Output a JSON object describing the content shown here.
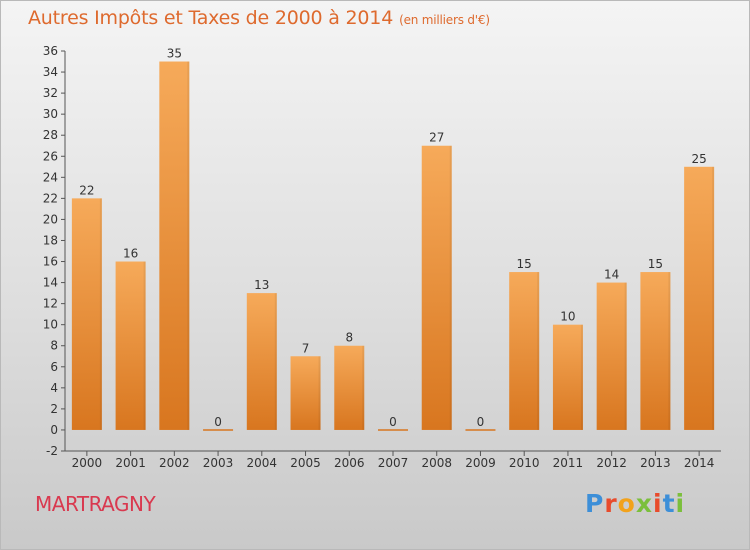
{
  "title": "Autres Impôts et Taxes de 2000 à 2014",
  "unit_label": "(en milliers d'€)",
  "city": "MARTRAGNY",
  "brand": "Proxiti",
  "brand_colors": [
    "#3d8fd8",
    "#e84b2c",
    "#f2a21b",
    "#7bbf3c",
    "#e84b2c",
    "#3d8fd8",
    "#7bbf3c"
  ],
  "colors": {
    "bar_top": "#f6aa5a",
    "bar_bottom": "#d8761f",
    "title": "#de6a2e",
    "city": "#d9394f"
  },
  "chart_data": {
    "type": "bar",
    "title": "Autres Impôts et Taxes de 2000 à 2014",
    "xlabel": "",
    "ylabel": "",
    "categories": [
      "2000",
      "2001",
      "2002",
      "2003",
      "2004",
      "2005",
      "2006",
      "2007",
      "2008",
      "2009",
      "2010",
      "2011",
      "2012",
      "2013",
      "2014"
    ],
    "values": [
      22,
      16,
      35,
      0,
      13,
      7,
      8,
      0,
      27,
      0,
      15,
      10,
      14,
      15,
      25
    ],
    "ylim": [
      -2,
      36
    ],
    "yticks": [
      -2,
      0,
      2,
      4,
      6,
      8,
      10,
      12,
      14,
      16,
      18,
      20,
      22,
      24,
      26,
      28,
      30,
      32,
      34,
      36
    ],
    "grid": false,
    "legend": "none"
  }
}
